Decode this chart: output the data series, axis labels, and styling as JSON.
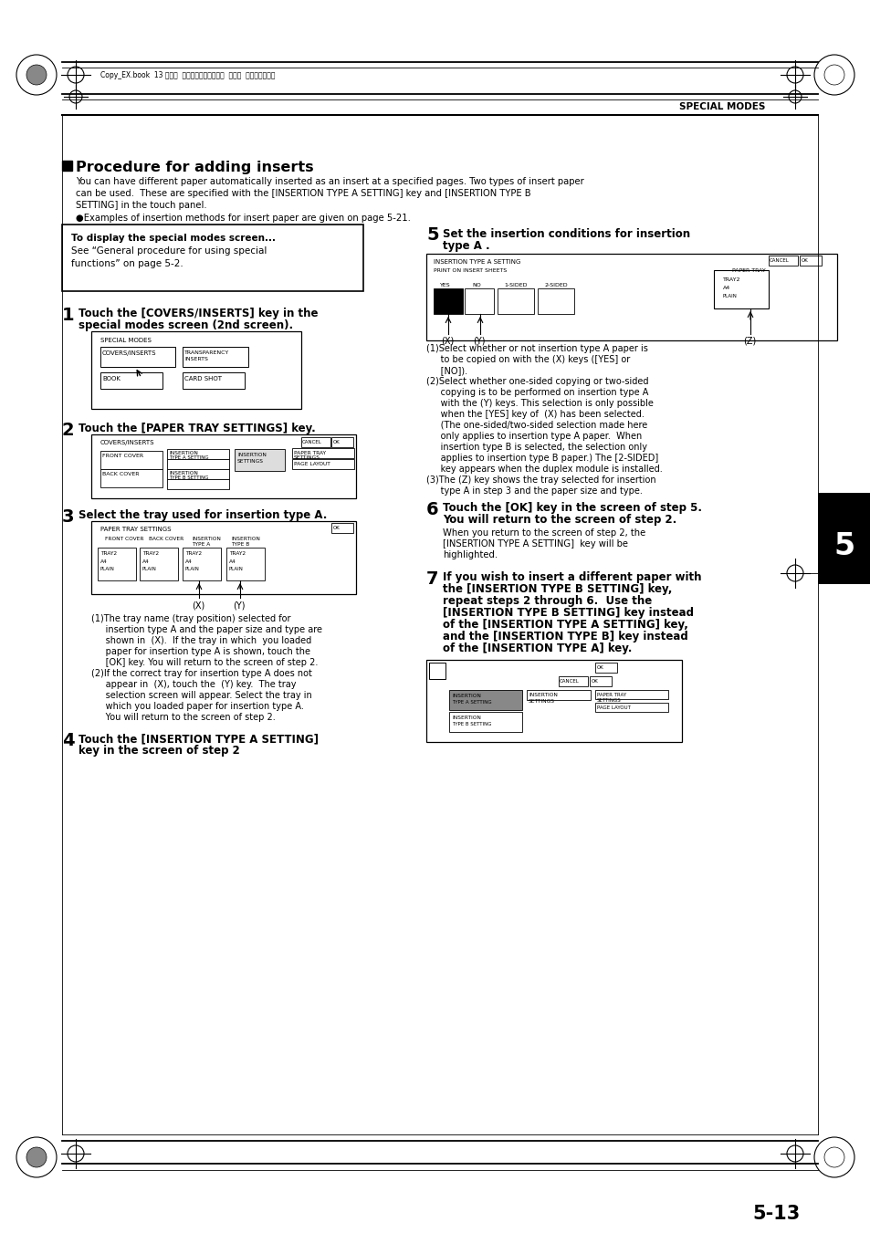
{
  "bg_color": "#ffffff",
  "title": "Procedure for adding inserts",
  "special_modes_label": "SPECIAL MODES",
  "header_text": "Copy_EX.book  13 ページ  ２００４年９月２８日  火曜日  午後９時５４分",
  "page_number": "5-13",
  "section_number": "5",
  "intro_text1": "You can have different paper automatically inserted as an insert at a specified pages. Two types of insert paper",
  "intro_text2": "can be used.  These are specified with the [INSERTION TYPE A SETTING] key and [INSERTION TYPE B",
  "intro_text3": "SETTING] in the touch panel.",
  "intro_text4": "●Examples of insertion methods for insert paper are given on page 5-21.",
  "box_title": "To display the special modes screen...",
  "box_line1": "See “General procedure for using special",
  "box_line2": "functions” on page 5-2.",
  "note3_1": "(1)The tray name (tray position) selected for",
  "note3_2": "     insertion type A and the paper size and type are",
  "note3_3": "     shown in  (X).  If the tray in which  you loaded",
  "note3_4": "     paper for insertion type A is shown, touch the",
  "note3_5": "     [OK] key. You will return to the screen of step 2.",
  "note3_6": "(2)If the correct tray for insertion type A does not",
  "note3_7": "     appear in  (X), touch the  (Y) key.  The tray",
  "note3_8": "     selection screen will appear. Select the tray in",
  "note3_9": "     which you loaded paper for insertion type A.",
  "note3_10": "     You will return to the screen of step 2.",
  "note5_1": "(1)Select whether or not insertion type A paper is",
  "note5_2": "     to be copied on with the (X) keys ([YES] or",
  "note5_3": "     [NO]).",
  "note5_4": "(2)Select whether one-sided copying or two-sided",
  "note5_5": "     copying is to be performed on insertion type A",
  "note5_6": "     with the (Y) keys. This selection is only possible",
  "note5_7": "     when the [YES] key of  (X) has been selected.",
  "note5_8": "     (The one-sided/two-sided selection made here",
  "note5_9": "     only applies to insertion type A paper.  When",
  "note5_10": "     insertion type B is selected, the selection only",
  "note5_11": "     applies to insertion type B paper.) The [2-SIDED]",
  "note5_12": "     key appears when the duplex module is installed.",
  "note5_13": "(3)The (Z) key shows the tray selected for insertion",
  "note5_14": "     type A in step 3 and the paper size and type.",
  "step6_sub1": "When you return to the screen of step 2, the",
  "step6_sub2": "[INSERTION TYPE A SETTING]  key will be",
  "step6_sub3": "highlighted.",
  "step7_line1": "If you wish to insert a different paper with",
  "step7_line2": "the [INSERTION TYPE B SETTING] key,",
  "step7_line3": "repeat steps 2 through 6.  Use the",
  "step7_line4": "[INSERTION TYPE B SETTING] key instead",
  "step7_line5": "of the [INSERTION TYPE A SETTING] key,",
  "step7_line6": "and the [INSERTION TYPE B] key instead",
  "step7_line7": "of the [INSERTION TYPE A] key."
}
